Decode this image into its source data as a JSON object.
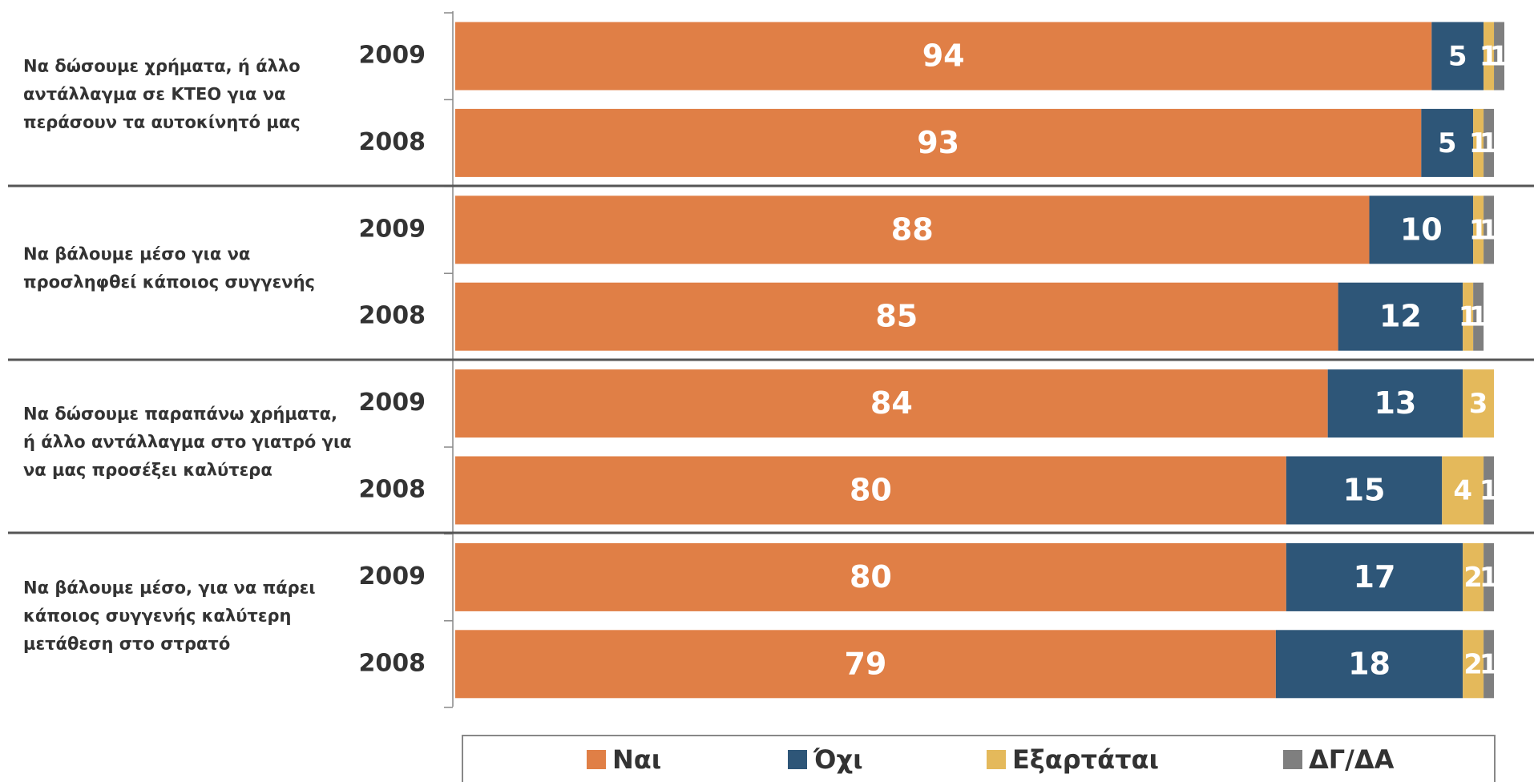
{
  "chart_data": {
    "type": "bar",
    "orientation": "horizontal",
    "stacked": true,
    "groups": [
      "Να δώσουμε χρήματα, ή άλλο αντάλλαγμα σε ΚΤΕΟ για να περάσουν τα αυτοκίνητό μας",
      "Να βάλουμε μέσο για να προσληφθεί κάποιος συγγενής",
      "Να δώσουμε παραπάνω χρήματα, ή άλλο αντάλλαγμα στο γιατρό για να μας προσέξει καλύτερα",
      "Να βάλουμε μέσο, για να πάρει κάποιος συγγενής καλύτερη μετάθεση στο στρατό"
    ],
    "categories": [
      "2009",
      "2008",
      "2009",
      "2008",
      "2009",
      "2008",
      "2009",
      "2008"
    ],
    "xlim": [
      0,
      101
    ],
    "series": [
      {
        "name": "Ναι",
        "color": "#E07F46",
        "values": [
          94,
          93,
          88,
          85,
          84,
          80,
          80,
          79
        ]
      },
      {
        "name": "Όχι",
        "color": "#2E5678",
        "values": [
          5,
          5,
          10,
          12,
          13,
          15,
          17,
          18
        ]
      },
      {
        "name": "Εξαρτάται",
        "color": "#E4B95B",
        "values": [
          1,
          1,
          1,
          1,
          3,
          4,
          2,
          2
        ]
      },
      {
        "name": "ΔΓ/ΔΑ",
        "color": "#7F7F7F",
        "values": [
          1,
          1,
          1,
          1,
          null,
          1,
          1,
          1
        ]
      }
    ]
  }
}
